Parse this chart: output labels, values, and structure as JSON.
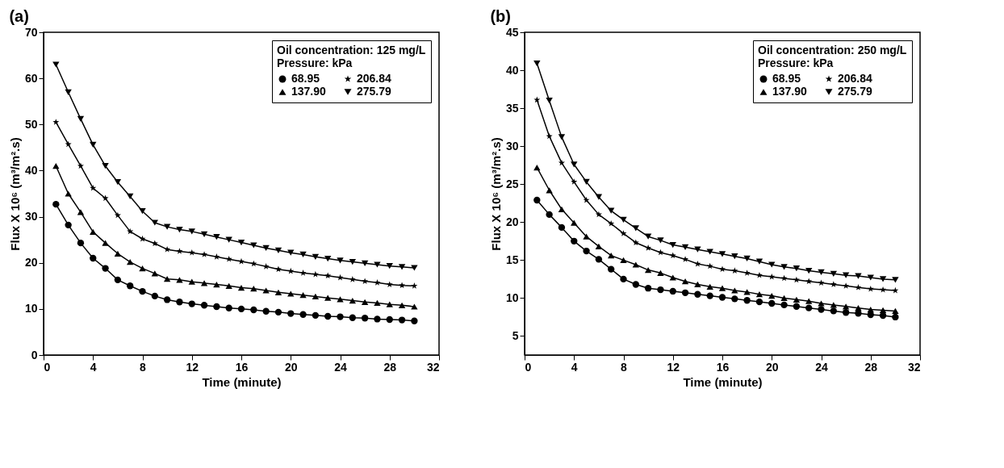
{
  "chart_data": [
    {
      "type": "line",
      "title": "(a)",
      "xlabel": "Time (minute)",
      "ylabel": "Flux X 10⁶ (m³/m².s)",
      "xlim": [
        0,
        32
      ],
      "xticks": [
        0,
        4,
        8,
        12,
        16,
        20,
        24,
        28,
        32
      ],
      "ylim": [
        0,
        70
      ],
      "yticks": [
        0,
        10,
        20,
        30,
        40,
        50,
        60,
        70
      ],
      "grid": false,
      "legend": "top right",
      "legend_title": "Oil concentration: 125 mg/L\nPressure: kPa",
      "x": [
        1,
        2,
        3,
        4,
        5,
        6,
        7,
        8,
        9,
        10,
        11,
        12,
        13,
        14,
        15,
        16,
        17,
        18,
        19,
        20,
        21,
        22,
        23,
        24,
        25,
        26,
        27,
        28,
        29,
        30
      ],
      "series": [
        {
          "name": "68.95",
          "color": "#000000",
          "marker": "circle",
          "values": [
            32.7,
            28.2,
            24.3,
            21.0,
            18.8,
            16.3,
            15.0,
            13.8,
            12.8,
            12.0,
            11.5,
            11.1,
            10.8,
            10.5,
            10.2,
            10.0,
            9.8,
            9.5,
            9.3,
            9.0,
            8.8,
            8.6,
            8.4,
            8.3,
            8.1,
            8.0,
            7.8,
            7.7,
            7.6,
            7.4
          ]
        },
        {
          "name": "137.90",
          "color": "#000000",
          "marker": "triangle",
          "values": [
            41.0,
            35.0,
            31.0,
            26.7,
            24.3,
            22.0,
            20.2,
            18.8,
            17.7,
            16.5,
            16.3,
            15.9,
            15.6,
            15.3,
            15.0,
            14.6,
            14.4,
            14.0,
            13.6,
            13.3,
            13.0,
            12.7,
            12.4,
            12.1,
            11.8,
            11.5,
            11.3,
            11.0,
            10.8,
            10.5
          ]
        },
        {
          "name": "206.84",
          "color": "#000000",
          "marker": "star",
          "values": [
            50.5,
            45.7,
            41.0,
            36.2,
            34.0,
            30.3,
            26.8,
            25.2,
            24.2,
            22.9,
            22.5,
            22.2,
            21.8,
            21.3,
            20.8,
            20.3,
            19.8,
            19.2,
            18.6,
            18.2,
            17.8,
            17.5,
            17.2,
            16.8,
            16.4,
            16.0,
            15.7,
            15.3,
            15.1,
            15.0
          ]
        },
        {
          "name": "275.79",
          "color": "#000000",
          "marker": "triangle-down",
          "values": [
            63.0,
            57.0,
            51.2,
            45.6,
            41.0,
            37.5,
            34.4,
            31.2,
            28.7,
            27.8,
            27.2,
            26.8,
            26.2,
            25.6,
            25.0,
            24.4,
            23.8,
            23.2,
            22.7,
            22.2,
            21.8,
            21.3,
            20.9,
            20.5,
            20.2,
            19.9,
            19.6,
            19.3,
            19.1,
            18.9
          ]
        }
      ]
    },
    {
      "type": "line",
      "title": "(b)",
      "xlabel": "Time (minute)",
      "ylabel": "Flux X 10⁶ (m³/m².s)",
      "xlim": [
        0,
        32
      ],
      "xticks": [
        0,
        4,
        8,
        12,
        16,
        20,
        24,
        28,
        32
      ],
      "ylim": [
        2.5,
        45
      ],
      "yticks": [
        5,
        10,
        15,
        20,
        25,
        30,
        35,
        40,
        45
      ],
      "grid": false,
      "legend": "top right",
      "legend_title": "Oil concentration: 250 mg/L\nPressure: kPa",
      "x": [
        1,
        2,
        3,
        4,
        5,
        6,
        7,
        8,
        9,
        10,
        11,
        12,
        13,
        14,
        15,
        16,
        17,
        18,
        19,
        20,
        21,
        22,
        23,
        24,
        25,
        26,
        27,
        28,
        29,
        30
      ],
      "series": [
        {
          "name": "68.95",
          "color": "#000000",
          "marker": "circle",
          "values": [
            22.9,
            21.0,
            19.3,
            17.5,
            16.2,
            15.1,
            13.8,
            12.5,
            11.8,
            11.3,
            11.1,
            10.9,
            10.7,
            10.5,
            10.3,
            10.1,
            9.9,
            9.7,
            9.5,
            9.3,
            9.1,
            8.9,
            8.7,
            8.5,
            8.3,
            8.1,
            8.0,
            7.8,
            7.7,
            7.5
          ]
        },
        {
          "name": "137.90",
          "color": "#000000",
          "marker": "triangle",
          "values": [
            27.2,
            24.2,
            21.7,
            19.9,
            18.1,
            16.8,
            15.6,
            15.0,
            14.4,
            13.7,
            13.3,
            12.7,
            12.2,
            11.8,
            11.5,
            11.3,
            11.0,
            10.8,
            10.5,
            10.3,
            10.0,
            9.8,
            9.6,
            9.3,
            9.1,
            8.9,
            8.7,
            8.5,
            8.4,
            8.3
          ]
        },
        {
          "name": "206.84",
          "color": "#000000",
          "marker": "star",
          "values": [
            36.1,
            31.3,
            27.8,
            25.3,
            22.9,
            21.0,
            19.8,
            18.5,
            17.3,
            16.6,
            16.0,
            15.6,
            15.1,
            14.5,
            14.2,
            13.8,
            13.6,
            13.3,
            13.0,
            12.8,
            12.6,
            12.4,
            12.2,
            12.0,
            11.8,
            11.6,
            11.4,
            11.2,
            11.1,
            11.0
          ]
        },
        {
          "name": "275.79",
          "color": "#000000",
          "marker": "triangle-down",
          "values": [
            40.9,
            36.0,
            31.2,
            27.6,
            25.3,
            23.3,
            21.5,
            20.3,
            19.2,
            18.1,
            17.6,
            17.0,
            16.7,
            16.4,
            16.1,
            15.8,
            15.5,
            15.2,
            14.8,
            14.4,
            14.1,
            13.9,
            13.6,
            13.4,
            13.2,
            13.0,
            12.9,
            12.7,
            12.5,
            12.4
          ]
        }
      ]
    }
  ]
}
